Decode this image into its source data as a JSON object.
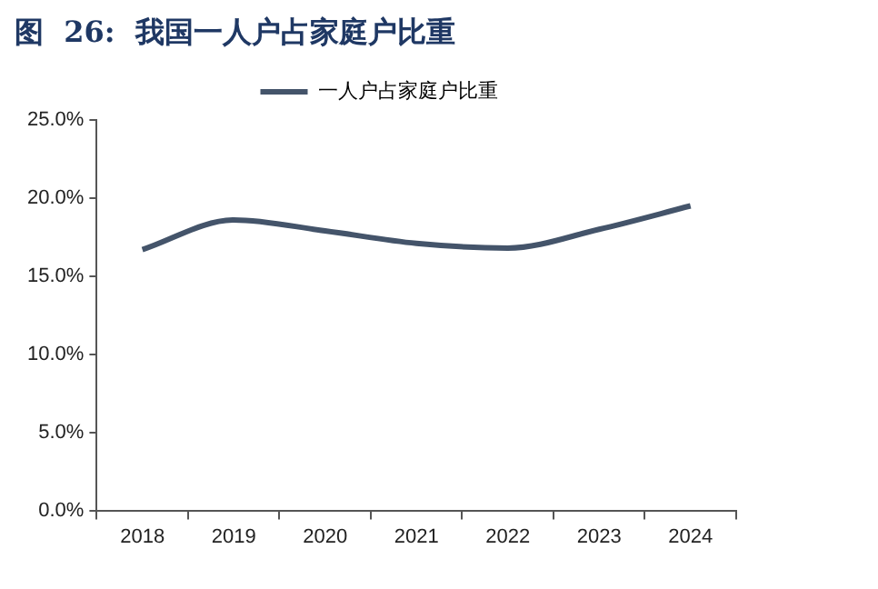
{
  "chart_data": {
    "type": "line",
    "title": "图  26:  我国一人户占家庭户比重",
    "categories": [
      "2018",
      "2019",
      "2020",
      "2021",
      "2022",
      "2023",
      "2024"
    ],
    "series": [
      {
        "name": "一人户占家庭户比重",
        "color": "#44546a",
        "values": [
          16.7,
          18.6,
          17.9,
          17.1,
          16.8,
          18.0,
          19.5
        ]
      }
    ],
    "ylim": [
      0,
      25
    ],
    "yticks": [
      {
        "value": 0,
        "label": "0.0%"
      },
      {
        "value": 5,
        "label": "5.0%"
      },
      {
        "value": 10,
        "label": "10.0%"
      },
      {
        "value": 15,
        "label": "15.0%"
      },
      {
        "value": 20,
        "label": "20.0%"
      },
      {
        "value": 25,
        "label": "25.0%"
      }
    ],
    "grid": false,
    "legend": "top",
    "marker": "none",
    "line_style": "solid"
  }
}
